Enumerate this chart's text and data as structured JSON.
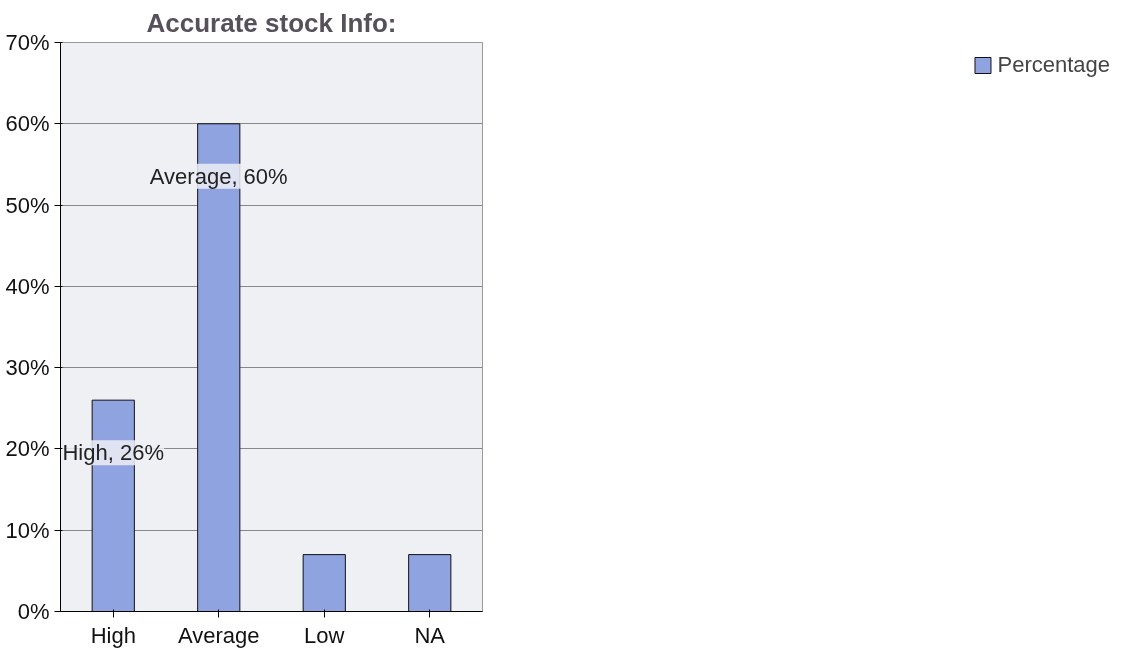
{
  "chart_data": {
    "type": "bar",
    "title": "Accurate stock Info:",
    "categories": [
      "High",
      "Average",
      "Low",
      "NA"
    ],
    "series": [
      {
        "name": "Percentage",
        "color": "#8fa3e0",
        "values": [
          26,
          60,
          7,
          7
        ],
        "value_labels": [
          "High, 26%",
          "Average, 60%",
          null,
          null
        ]
      }
    ],
    "ylim": [
      0,
      70
    ],
    "yticks": [
      {
        "value": 0,
        "label": "0%"
      },
      {
        "value": 10,
        "label": "10%"
      },
      {
        "value": 20,
        "label": "20%"
      },
      {
        "value": 30,
        "label": "30%"
      },
      {
        "value": 40,
        "label": "40%"
      },
      {
        "value": 50,
        "label": "50%"
      },
      {
        "value": 60,
        "label": "60%"
      },
      {
        "value": 70,
        "label": "70%"
      }
    ],
    "grid": "y",
    "legend": "right"
  }
}
